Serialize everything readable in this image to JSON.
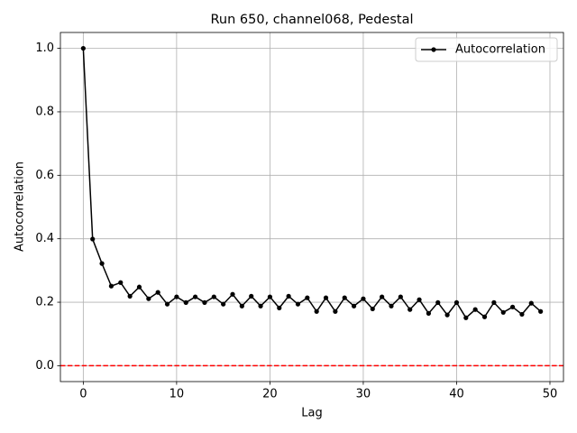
{
  "chart_data": {
    "type": "line",
    "title": "Run 650, channel068, Pedestal",
    "x_label": "Lag",
    "y_label": "Autocorrelation",
    "x": [
      0,
      1,
      2,
      3,
      4,
      5,
      6,
      7,
      8,
      9,
      10,
      11,
      12,
      13,
      14,
      15,
      16,
      17,
      18,
      19,
      20,
      21,
      22,
      23,
      24,
      25,
      26,
      27,
      28,
      29,
      30,
      31,
      32,
      33,
      34,
      35,
      36,
      37,
      38,
      39,
      40,
      41,
      42,
      43,
      44,
      45,
      46,
      47,
      48,
      49
    ],
    "series": [
      {
        "name": "Autocorrelation",
        "color": "#000000",
        "values": [
          1.0,
          0.399,
          0.322,
          0.251,
          0.262,
          0.219,
          0.248,
          0.211,
          0.231,
          0.194,
          0.217,
          0.199,
          0.217,
          0.199,
          0.217,
          0.194,
          0.225,
          0.188,
          0.219,
          0.188,
          0.217,
          0.182,
          0.219,
          0.194,
          0.214,
          0.171,
          0.214,
          0.171,
          0.214,
          0.188,
          0.211,
          0.179,
          0.217,
          0.188,
          0.217,
          0.177,
          0.208,
          0.165,
          0.199,
          0.16,
          0.199,
          0.151,
          0.177,
          0.154,
          0.199,
          0.168,
          0.185,
          0.162,
          0.197,
          0.171
        ]
      }
    ],
    "hline": {
      "value": 0,
      "color": "#ff0000"
    },
    "xlim": [
      -2.45,
      51.45
    ],
    "ylim": [
      -0.05,
      1.05
    ],
    "xticks": [
      0,
      10,
      20,
      30,
      40,
      50
    ],
    "yticks": [
      {
        "value": 0,
        "label": "0.0"
      },
      {
        "value": 0.2,
        "label": "0.2"
      },
      {
        "value": 0.4,
        "label": "0.4"
      },
      {
        "value": 0.6,
        "label": "0.6"
      },
      {
        "value": 0.8,
        "label": "0.8"
      },
      {
        "value": 1.0,
        "label": "1.0"
      }
    ],
    "grid": true,
    "legend": "upper right"
  }
}
